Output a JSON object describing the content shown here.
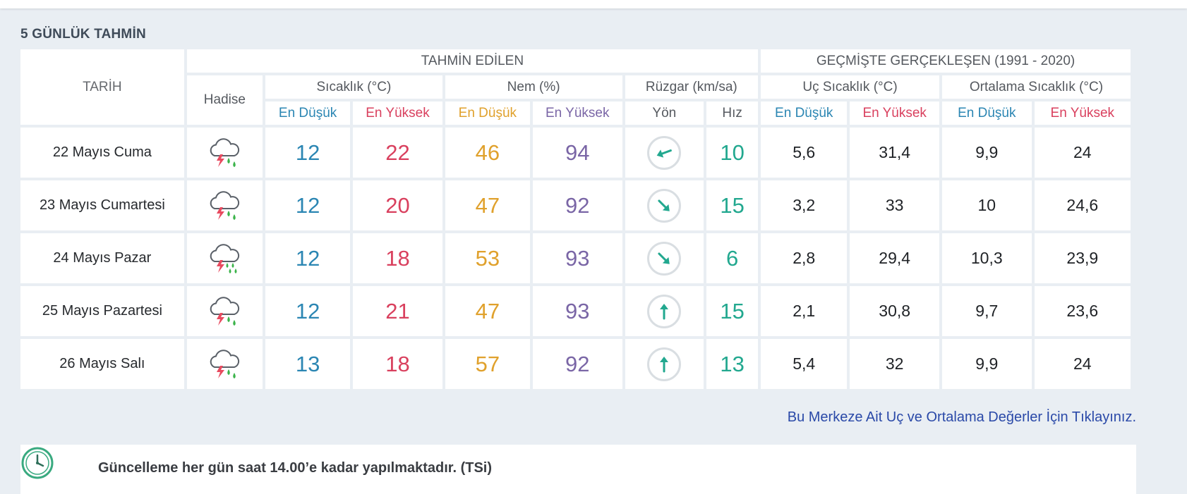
{
  "section_title": "5 GÜNLÜK TAHMİN",
  "headers": {
    "tarih": "TARİH",
    "tahmin_edilen": "TAHMİN EDİLEN",
    "gecmiste": "GEÇMİŞTE GERÇEKLEŞEN (1991 - 2020)",
    "hadise": "Hadise",
    "sicaklik": "Sıcaklık (°C)",
    "nem": "Nem (%)",
    "ruzgar": "Rüzgar (km/sa)",
    "uc_sicaklik": "Uç Sıcaklık (°C)",
    "ortalama_sicaklik": "Ortalama Sıcaklık (°C)",
    "en_dusuk": "En Düşük",
    "en_yuksek": "En Yüksek",
    "yon": "Yön",
    "hiz": "Hız"
  },
  "rows": [
    {
      "date": "22 Mayıs Cuma",
      "hadise_icon": "thunder-rain-icon",
      "temp_min": "12",
      "temp_max": "22",
      "hum_min": "46",
      "hum_max": "94",
      "wind_dir_deg": 70,
      "wind_speed": "10",
      "uc_min": "5,6",
      "uc_max": "31,4",
      "ort_min": "9,9",
      "ort_max": "24"
    },
    {
      "date": "23 Mayıs Cumartesi",
      "hadise_icon": "thunder-rain-icon",
      "temp_min": "12",
      "temp_max": "20",
      "hum_min": "47",
      "hum_max": "92",
      "wind_dir_deg": -45,
      "wind_speed": "15",
      "uc_min": "3,2",
      "uc_max": "33",
      "ort_min": "10",
      "ort_max": "24,6"
    },
    {
      "date": "24 Mayıs Pazar",
      "hadise_icon": "thunder-heavy-rain-icon",
      "temp_min": "12",
      "temp_max": "18",
      "hum_min": "53",
      "hum_max": "93",
      "wind_dir_deg": -45,
      "wind_speed": "6",
      "uc_min": "2,8",
      "uc_max": "29,4",
      "ort_min": "10,3",
      "ort_max": "23,9"
    },
    {
      "date": "25 Mayıs Pazartesi",
      "hadise_icon": "thunder-rain-icon",
      "temp_min": "12",
      "temp_max": "21",
      "hum_min": "47",
      "hum_max": "93",
      "wind_dir_deg": 180,
      "wind_speed": "15",
      "uc_min": "2,1",
      "uc_max": "30,8",
      "ort_min": "9,7",
      "ort_max": "23,6"
    },
    {
      "date": "26 Mayıs Salı",
      "hadise_icon": "thunder-rain-icon",
      "temp_min": "13",
      "temp_max": "18",
      "hum_min": "57",
      "hum_max": "92",
      "wind_dir_deg": 180,
      "wind_speed": "13",
      "uc_min": "5,4",
      "uc_max": "32",
      "ort_min": "9,9",
      "ort_max": "24"
    }
  ],
  "link_text": "Bu Merkeze Ait Uç ve Ortalama Değerler İçin Tıklayınız.",
  "note_text": "Güncelleme her gün saat 14.00’e kadar yapılmaktadır. (TSi)",
  "colors": {
    "min": "#2b86b3",
    "max": "#d9405e",
    "hum_min": "#e0a12c",
    "hum_max": "#7a66a6",
    "wind": "#22a88f",
    "link": "#2a49a8"
  }
}
